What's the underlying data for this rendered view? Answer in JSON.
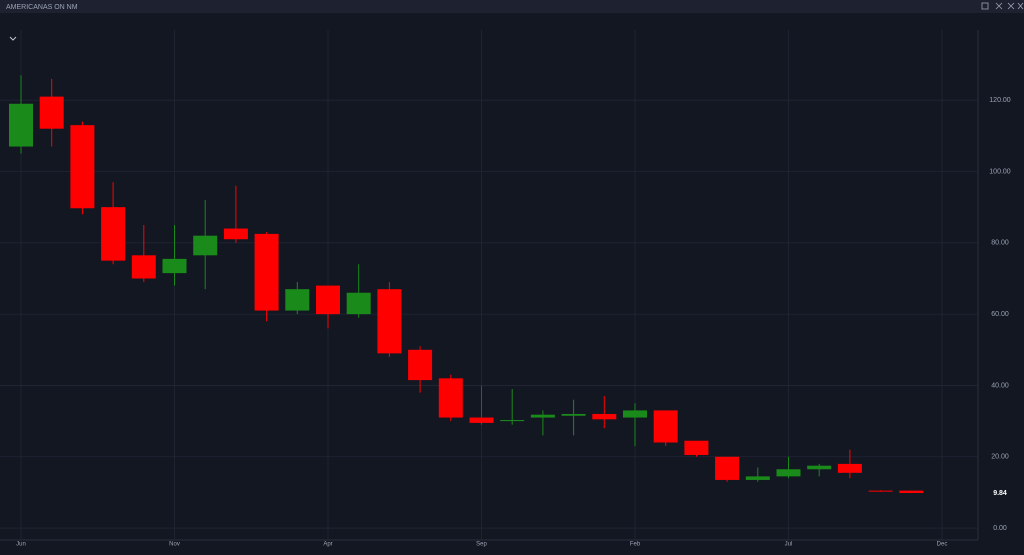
{
  "chart_data": {
    "type": "candlestick",
    "title": "AMERICANAS ON NM",
    "categories": [
      "Jun",
      null,
      null,
      null,
      null,
      "Nov",
      null,
      null,
      null,
      null,
      "Apr",
      null,
      null,
      null,
      null,
      "Sep",
      null,
      null,
      null,
      null,
      "Feb",
      null,
      null,
      null,
      null,
      "Jul",
      null,
      null,
      null,
      null,
      "Dec"
    ],
    "open": [
      107,
      121,
      113,
      90,
      76.5,
      71.5,
      76.5,
      84,
      82.5,
      61,
      68,
      60,
      67,
      50,
      42,
      31,
      30,
      31,
      31.5,
      32,
      31,
      33,
      24.5,
      20,
      13.5,
      14.5,
      16.5,
      18,
      10.5,
      10.5,
      null
    ],
    "high": [
      127,
      126,
      114,
      97,
      85,
      85,
      92,
      96,
      83,
      69,
      68,
      74,
      69,
      51,
      43,
      40,
      39,
      33,
      36,
      37,
      35,
      33,
      24.5,
      20,
      17,
      20,
      18,
      22,
      10.6,
      10.5,
      null
    ],
    "low": [
      105,
      107,
      88,
      74,
      69,
      68,
      67,
      80,
      58,
      60,
      56,
      59,
      48,
      38,
      30,
      29,
      29,
      26,
      26,
      28,
      23,
      23,
      20,
      13,
      13,
      14,
      14.5,
      14,
      10.2,
      9.8,
      null
    ],
    "close": [
      119,
      112,
      89.7,
      75,
      70,
      75.5,
      82,
      81,
      61,
      67,
      60,
      66,
      49,
      41.5,
      31,
      29.5,
      30.3,
      31.8,
      32,
      30.5,
      33,
      24,
      20.5,
      13.5,
      14.5,
      16.5,
      17.5,
      15.5,
      10.3,
      9.84,
      null
    ],
    "up_color": "#1a8a1a",
    "down_color": "#ff0000",
    "ylim": [
      -2.5,
      138
    ],
    "yticks": [
      {
        "value": 0,
        "label": "0.00"
      },
      {
        "value": 20,
        "label": "20.00"
      },
      {
        "value": 40,
        "label": "40.00"
      },
      {
        "value": 60,
        "label": "60.00"
      },
      {
        "value": 80,
        "label": "80.00"
      },
      {
        "value": 100,
        "label": "100.00"
      },
      {
        "value": 120,
        "label": "120.00"
      }
    ],
    "last_price": {
      "value": 9.84,
      "label": "9.84"
    },
    "grid": true
  }
}
